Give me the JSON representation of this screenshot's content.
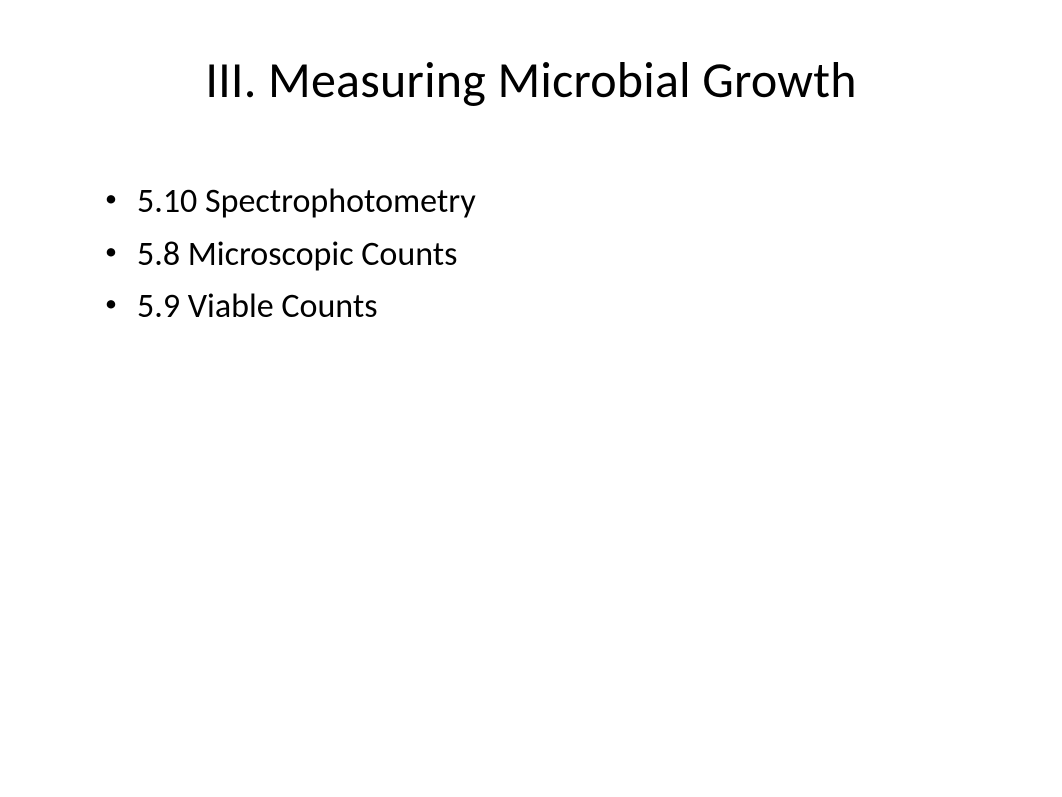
{
  "slide": {
    "title": "III. Measuring Microbial Growth",
    "bullets": [
      "5.10 Spectrophotometry",
      "5.8 Microscopic Counts",
      "5.9 Viable Counts"
    ]
  }
}
